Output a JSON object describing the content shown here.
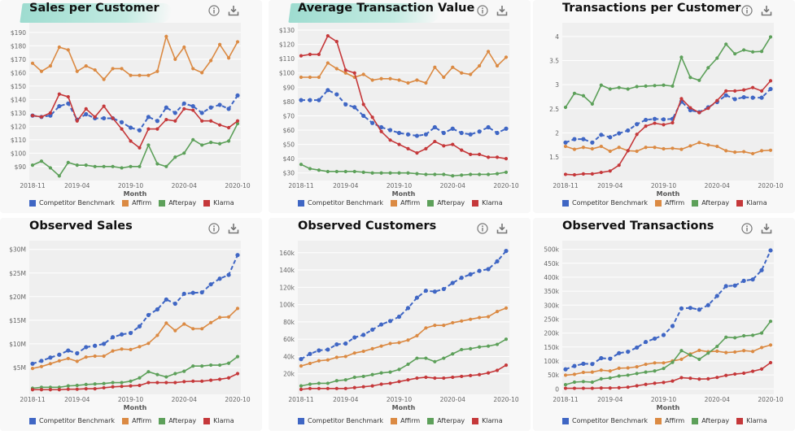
{
  "legend_colors": {
    "Competitor Benchmark": "#3f66c4",
    "Affirm": "#db8a43",
    "Afterpay": "#5da05a",
    "Klarna": "#c5383a"
  },
  "chart_data": [
    {
      "type": "line",
      "title": "Sales per Customer",
      "highlight": true,
      "xlabel": "Month",
      "ylim": [
        82,
        196
      ],
      "x_ticks": [
        "2018-11",
        "2019-04",
        "2019-10",
        "2020-04",
        "2020-10"
      ],
      "y_ticks": [
        {
          "v": 90,
          "l": "$90"
        },
        {
          "v": 100,
          "l": "$100"
        },
        {
          "v": 110,
          "l": "$110"
        },
        {
          "v": 120,
          "l": "$120"
        },
        {
          "v": 130,
          "l": "$130"
        },
        {
          "v": 140,
          "l": "$140"
        },
        {
          "v": 150,
          "l": "$150"
        },
        {
          "v": 160,
          "l": "$160"
        },
        {
          "v": 170,
          "l": "$170"
        },
        {
          "v": 180,
          "l": "$180"
        },
        {
          "v": 190,
          "l": "$190"
        }
      ],
      "series": [
        {
          "name": "Competitor Benchmark",
          "dashed": true,
          "values": [
            128,
            127,
            128,
            135,
            137,
            125,
            129,
            126,
            126,
            126,
            123,
            119,
            117,
            127,
            124,
            134,
            130,
            137,
            135,
            130,
            134,
            136,
            133,
            143
          ]
        },
        {
          "name": "Affirm",
          "values": [
            167,
            161,
            165,
            179,
            177,
            161,
            165,
            162,
            155,
            163,
            163,
            158,
            158,
            158,
            161,
            187,
            170,
            179,
            163,
            160,
            169,
            181,
            171,
            183
          ]
        },
        {
          "name": "Afterpay",
          "values": [
            91,
            94,
            89,
            83,
            93,
            91,
            91,
            90,
            90,
            90,
            89,
            90,
            90,
            106,
            92,
            90,
            97,
            100,
            110,
            106,
            108,
            107,
            109,
            122
          ]
        },
        {
          "name": "Klarna",
          "values": [
            128,
            127,
            130,
            144,
            142,
            124,
            133,
            127,
            135,
            126,
            118,
            109,
            104,
            118,
            118,
            125,
            124,
            133,
            132,
            124,
            124,
            121,
            119,
            124
          ]
        }
      ]
    },
    {
      "type": "line",
      "title": "Average Transaction Value",
      "highlight": true,
      "xlabel": "Month",
      "ylim": [
        27,
        134
      ],
      "x_ticks": [
        "2018-11",
        "2019-04",
        "2019-10",
        "2020-04",
        "2020-10"
      ],
      "y_ticks": [
        {
          "v": 30,
          "l": "$30"
        },
        {
          "v": 40,
          "l": "$40"
        },
        {
          "v": 50,
          "l": "$50"
        },
        {
          "v": 60,
          "l": "$60"
        },
        {
          "v": 70,
          "l": "$70"
        },
        {
          "v": 80,
          "l": "$80"
        },
        {
          "v": 90,
          "l": "$90"
        },
        {
          "v": 100,
          "l": "$100"
        },
        {
          "v": 110,
          "l": "$110"
        },
        {
          "v": 120,
          "l": "$120"
        },
        {
          "v": 130,
          "l": "$130"
        }
      ],
      "series": [
        {
          "name": "Competitor Benchmark",
          "dashed": true,
          "values": [
            81,
            81,
            81,
            88,
            85,
            78,
            76,
            70,
            65,
            62,
            60,
            58,
            57,
            56,
            57,
            62,
            58,
            61,
            58,
            57,
            59,
            62,
            58,
            61
          ]
        },
        {
          "name": "Affirm",
          "values": [
            97,
            97,
            97,
            107,
            103,
            100,
            97,
            99,
            95,
            96,
            96,
            95,
            93,
            95,
            93,
            104,
            97,
            104,
            100,
            99,
            105,
            115,
            105,
            111
          ]
        },
        {
          "name": "Afterpay",
          "values": [
            36,
            33,
            32,
            31,
            31,
            31,
            31,
            30.5,
            30,
            30,
            30,
            30,
            30,
            29.5,
            29,
            29,
            29,
            28,
            28.5,
            29,
            29,
            29,
            29.5,
            30.5
          ]
        },
        {
          "name": "Klarna",
          "values": [
            112,
            113,
            113,
            126,
            122,
            102,
            100,
            78,
            69,
            59,
            53,
            50,
            47,
            44,
            47,
            52,
            49,
            50,
            46,
            43,
            43,
            41,
            41,
            40
          ]
        }
      ]
    },
    {
      "type": "line",
      "title": "Transactions per Customer",
      "highlight": false,
      "xlabel": "Month",
      "ylim": [
        1.08,
        4.25
      ],
      "x_ticks": [
        "2018-11",
        "2019-04",
        "2019-10",
        "2020-04",
        "2020-10"
      ],
      "y_ticks": [
        {
          "v": 1.5,
          "l": "1.5"
        },
        {
          "v": 2,
          "l": "2"
        },
        {
          "v": 2.5,
          "l": "2.5"
        },
        {
          "v": 3,
          "l": "3"
        },
        {
          "v": 3.5,
          "l": "3.5"
        },
        {
          "v": 4,
          "l": "4"
        }
      ],
      "series": [
        {
          "name": "Competitor Benchmark",
          "dashed": true,
          "values": [
            1.8,
            1.87,
            1.87,
            1.8,
            1.96,
            1.91,
            1.99,
            2.05,
            2.18,
            2.27,
            2.29,
            2.28,
            2.29,
            2.65,
            2.47,
            2.43,
            2.53,
            2.64,
            2.78,
            2.7,
            2.74,
            2.73,
            2.73,
            2.91
          ]
        },
        {
          "name": "Affirm",
          "values": [
            1.72,
            1.66,
            1.7,
            1.67,
            1.72,
            1.62,
            1.7,
            1.63,
            1.62,
            1.7,
            1.7,
            1.67,
            1.68,
            1.66,
            1.73,
            1.8,
            1.75,
            1.72,
            1.63,
            1.6,
            1.61,
            1.57,
            1.63,
            1.64
          ]
        },
        {
          "name": "Afterpay",
          "values": [
            2.53,
            2.82,
            2.77,
            2.6,
            2.99,
            2.91,
            2.94,
            2.91,
            2.96,
            2.97,
            2.98,
            2.99,
            2.97,
            3.57,
            3.15,
            3.09,
            3.35,
            3.55,
            3.84,
            3.64,
            3.72,
            3.68,
            3.69,
            3.99
          ]
        },
        {
          "name": "Klarna",
          "values": [
            1.14,
            1.13,
            1.15,
            1.15,
            1.18,
            1.21,
            1.33,
            1.63,
            1.97,
            2.14,
            2.2,
            2.17,
            2.21,
            2.71,
            2.52,
            2.42,
            2.51,
            2.67,
            2.87,
            2.87,
            2.89,
            2.94,
            2.87,
            3.08
          ]
        }
      ]
    },
    {
      "type": "line",
      "title": "Observed Sales",
      "highlight": false,
      "xlabel": "Month",
      "ylim": [
        0,
        31.5
      ],
      "x_ticks": [
        "2018-11",
        "2019-04",
        "2019-10",
        "2020-04",
        "2020-10"
      ],
      "y_ticks": [
        {
          "v": 5,
          "l": "$5M"
        },
        {
          "v": 10,
          "l": "$10M"
        },
        {
          "v": 15,
          "l": "$15M"
        },
        {
          "v": 20,
          "l": "$20M"
        },
        {
          "v": 25,
          "l": "$25M"
        },
        {
          "v": 30,
          "l": "$30M"
        }
      ],
      "series": [
        {
          "name": "Competitor Benchmark",
          "dashed": true,
          "values": [
            5.8,
            6.4,
            7.1,
            7.7,
            8.6,
            8.0,
            9.3,
            9.6,
            10.0,
            11.4,
            12.0,
            12.3,
            13.7,
            16.1,
            17.3,
            19.4,
            18.5,
            20.6,
            20.8,
            20.9,
            22.6,
            23.8,
            24.6,
            28.8
          ]
        },
        {
          "name": "Affirm",
          "values": [
            4.8,
            5.2,
            5.8,
            6.4,
            6.9,
            6.3,
            7.2,
            7.4,
            7.4,
            8.5,
            8.9,
            8.8,
            9.4,
            10.1,
            11.8,
            14.4,
            12.8,
            14.2,
            13.2,
            13.2,
            14.5,
            15.6,
            15.7,
            17.5
          ]
        },
        {
          "name": "Afterpay",
          "values": [
            0.6,
            0.8,
            0.8,
            0.8,
            1.1,
            1.2,
            1.4,
            1.5,
            1.6,
            1.8,
            1.8,
            2.1,
            2.8,
            4.1,
            3.5,
            3.0,
            3.7,
            4.2,
            5.3,
            5.3,
            5.5,
            5.5,
            5.9,
            7.3
          ]
        },
        {
          "name": "Klarna",
          "values": [
            0.3,
            0.3,
            0.3,
            0.3,
            0.4,
            0.4,
            0.5,
            0.5,
            0.7,
            0.9,
            1.0,
            1.1,
            1.2,
            1.8,
            1.8,
            1.8,
            1.8,
            2.0,
            2.1,
            2.1,
            2.3,
            2.5,
            2.8,
            3.7
          ]
        }
      ]
    },
    {
      "type": "line",
      "title": "Observed Customers",
      "highlight": false,
      "xlabel": "Month",
      "ylim": [
        0,
        172
      ],
      "x_ticks": [
        "2018-11",
        "2019-04",
        "2019-10",
        "2020-04",
        "2020-10"
      ],
      "y_ticks": [
        {
          "v": 20,
          "l": "20k"
        },
        {
          "v": 40,
          "l": "40k"
        },
        {
          "v": 60,
          "l": "60k"
        },
        {
          "v": 80,
          "l": "80k"
        },
        {
          "v": 100,
          "l": "100k"
        },
        {
          "v": 120,
          "l": "120k"
        },
        {
          "v": 140,
          "l": "140k"
        },
        {
          "v": 160,
          "l": "160k"
        }
      ],
      "series": [
        {
          "name": "Competitor Benchmark",
          "dashed": true,
          "values": [
            37,
            43,
            47,
            48,
            54,
            55,
            62,
            65,
            71,
            77,
            81,
            86,
            96,
            108,
            116,
            115,
            118,
            125,
            131,
            135,
            139,
            141,
            150,
            162
          ]
        },
        {
          "name": "Affirm",
          "values": [
            29,
            32,
            35,
            36,
            39,
            40,
            44,
            46,
            49,
            52,
            55,
            56,
            59,
            64,
            73,
            76,
            76,
            79,
            81,
            83,
            85,
            86,
            92,
            96
          ]
        },
        {
          "name": "Afterpay",
          "values": [
            6,
            8,
            9,
            9,
            12,
            13,
            16,
            17,
            19,
            21,
            22,
            25,
            31,
            38,
            38,
            34,
            38,
            43,
            48,
            49,
            51,
            52,
            54,
            60
          ]
        },
        {
          "name": "Klarna",
          "values": [
            2,
            3,
            3,
            3,
            3,
            3,
            4,
            5,
            6,
            8,
            9,
            11,
            13,
            15,
            16,
            15,
            15,
            16,
            17,
            18,
            19,
            21,
            24,
            30
          ]
        }
      ]
    },
    {
      "type": "line",
      "title": "Observed Transactions",
      "highlight": false,
      "xlabel": "Month",
      "ylim": [
        -8,
        525
      ],
      "x_ticks": [
        "2018-11",
        "2019-04",
        "2019-10",
        "2020-04",
        "2020-10"
      ],
      "y_ticks": [
        {
          "v": 0,
          "l": "0"
        },
        {
          "v": 50,
          "l": "50k"
        },
        {
          "v": 100,
          "l": "100k"
        },
        {
          "v": 150,
          "l": "150k"
        },
        {
          "v": 200,
          "l": "200k"
        },
        {
          "v": 250,
          "l": "250k"
        },
        {
          "v": 300,
          "l": "300k"
        },
        {
          "v": 350,
          "l": "350k"
        },
        {
          "v": 400,
          "l": "400k"
        },
        {
          "v": 450,
          "l": "450k"
        },
        {
          "v": 500,
          "l": "500k"
        }
      ],
      "series": [
        {
          "name": "Competitor Benchmark",
          "dashed": true,
          "values": [
            70,
            82,
            90,
            89,
            110,
            108,
            128,
            133,
            148,
            168,
            180,
            193,
            225,
            288,
            290,
            284,
            300,
            333,
            368,
            370,
            387,
            392,
            425,
            496
          ]
        },
        {
          "name": "Affirm",
          "values": [
            49,
            52,
            59,
            60,
            67,
            64,
            74,
            75,
            79,
            88,
            93,
            93,
            100,
            106,
            125,
            138,
            133,
            135,
            130,
            132,
            137,
            134,
            148,
            157
          ]
        },
        {
          "name": "Afterpay",
          "values": [
            15,
            24,
            26,
            24,
            36,
            39,
            46,
            49,
            55,
            60,
            64,
            73,
            95,
            137,
            121,
            106,
            128,
            152,
            185,
            183,
            190,
            192,
            200,
            242
          ]
        },
        {
          "name": "Klarna",
          "values": [
            2,
            2,
            2,
            2,
            3,
            3,
            4,
            6,
            11,
            16,
            20,
            23,
            28,
            40,
            38,
            35,
            36,
            41,
            48,
            53,
            56,
            63,
            71,
            94
          ]
        }
      ]
    }
  ]
}
